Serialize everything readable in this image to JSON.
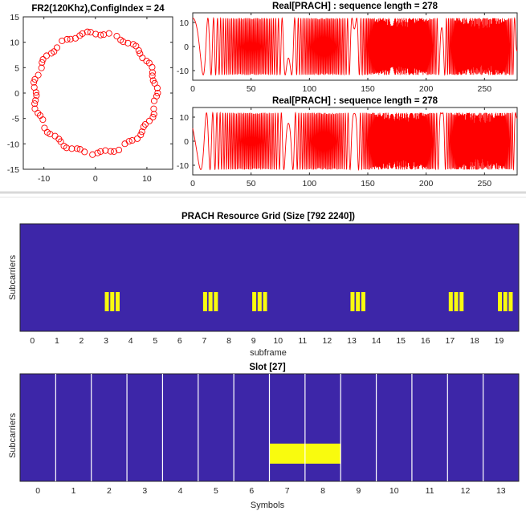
{
  "chart_data": [
    {
      "type": "scatter",
      "title": "FR2(120Khz),ConfigIndex = 24",
      "xlabel": "",
      "ylabel": "",
      "xlim": [
        -14,
        15
      ],
      "ylim": [
        -15,
        15
      ],
      "xticks": [
        "-10",
        "0",
        "10"
      ],
      "yticks": [
        "15",
        "10",
        "5",
        "0",
        "-5",
        "-10",
        "-15"
      ],
      "marker": "circle-open",
      "color": "#ff0000",
      "radius": 11.8,
      "point_count": 82
    },
    {
      "type": "line",
      "title": "Real[PRACH] : sequence length = 278",
      "xlabel": "",
      "ylabel": "",
      "xlim": [
        0,
        278
      ],
      "ylim": [
        -14,
        14
      ],
      "xticks": [
        "0",
        "50",
        "100",
        "150",
        "200",
        "250"
      ],
      "yticks": [
        "10",
        "0",
        "-10"
      ],
      "color": "#ff0000",
      "amplitude": 11.8
    },
    {
      "type": "line",
      "title": "Real[PRACH] : sequence length = 278",
      "xlabel": "",
      "ylabel": "",
      "xlim": [
        0,
        278
      ],
      "ylim": [
        -14,
        14
      ],
      "xticks": [
        "0",
        "50",
        "100",
        "150",
        "200",
        "250"
      ],
      "yticks": [
        "10",
        "0",
        "-10"
      ],
      "color": "#ff0000",
      "amplitude": 11.8
    },
    {
      "type": "heatmap",
      "title": "PRACH Resource Grid (Size [792 2240])",
      "xlabel": "subframe",
      "ylabel": "Subcarriers",
      "xticks": [
        "0",
        "1",
        "2",
        "3",
        "4",
        "5",
        "6",
        "7",
        "8",
        "9",
        "10",
        "11",
        "12",
        "13",
        "14",
        "15",
        "16",
        "17",
        "18",
        "19"
      ],
      "xlim": [
        -0.5,
        19.8
      ],
      "active_subframes": [
        3,
        7,
        9,
        13,
        17,
        19
      ],
      "background_color": "#3d26a8",
      "active_color": "#f9fb0e"
    },
    {
      "type": "heatmap",
      "title": "Slot [27]",
      "xlabel": "Symbols",
      "ylabel": "Subcarriers",
      "xticks": [
        "0",
        "1",
        "2",
        "3",
        "4",
        "5",
        "6",
        "7",
        "8",
        "9",
        "10",
        "11",
        "12",
        "13"
      ],
      "xlim": [
        -0.5,
        13.5
      ],
      "active_symbols": [
        7,
        8
      ],
      "background_color": "#3d26a8",
      "active_color": "#f9fb0e"
    }
  ]
}
